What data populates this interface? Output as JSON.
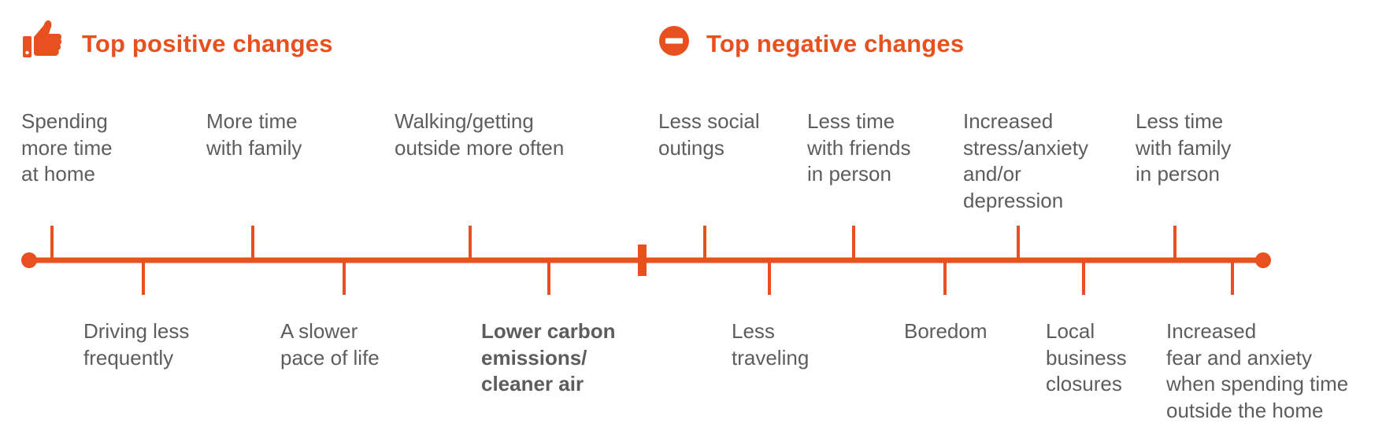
{
  "colors": {
    "accent": "#e8501f",
    "text": "#5d5d5d"
  },
  "positive": {
    "title": "Top positive changes",
    "icon": "thumbs-up-icon"
  },
  "negative": {
    "title": "Top negative changes",
    "icon": "minus-circle-icon"
  },
  "labels": {
    "spending_more_time": "Spending\nmore time\nat home",
    "more_time_family": "More time\nwith family",
    "walking": "Walking/getting\noutside more often",
    "driving_less": "Driving less\nfrequently",
    "slower_pace": "A slower\npace of life",
    "lower_carbon": "Lower carbon\nemissions/\ncleaner air",
    "less_social": "Less social\noutings",
    "less_time_friends": "Less time\nwith friends\nin person",
    "increased_stress": "Increased\nstress/anxiety\nand/or\ndepression",
    "less_time_family": "Less time\nwith family\nin person",
    "less_traveling": "Less\ntraveling",
    "boredom": "Boredom",
    "local_business": "Local\nbusiness\nclosures",
    "increased_fear": "Increased\nfear and anxiety\nwhen spending time\noutside the home"
  }
}
